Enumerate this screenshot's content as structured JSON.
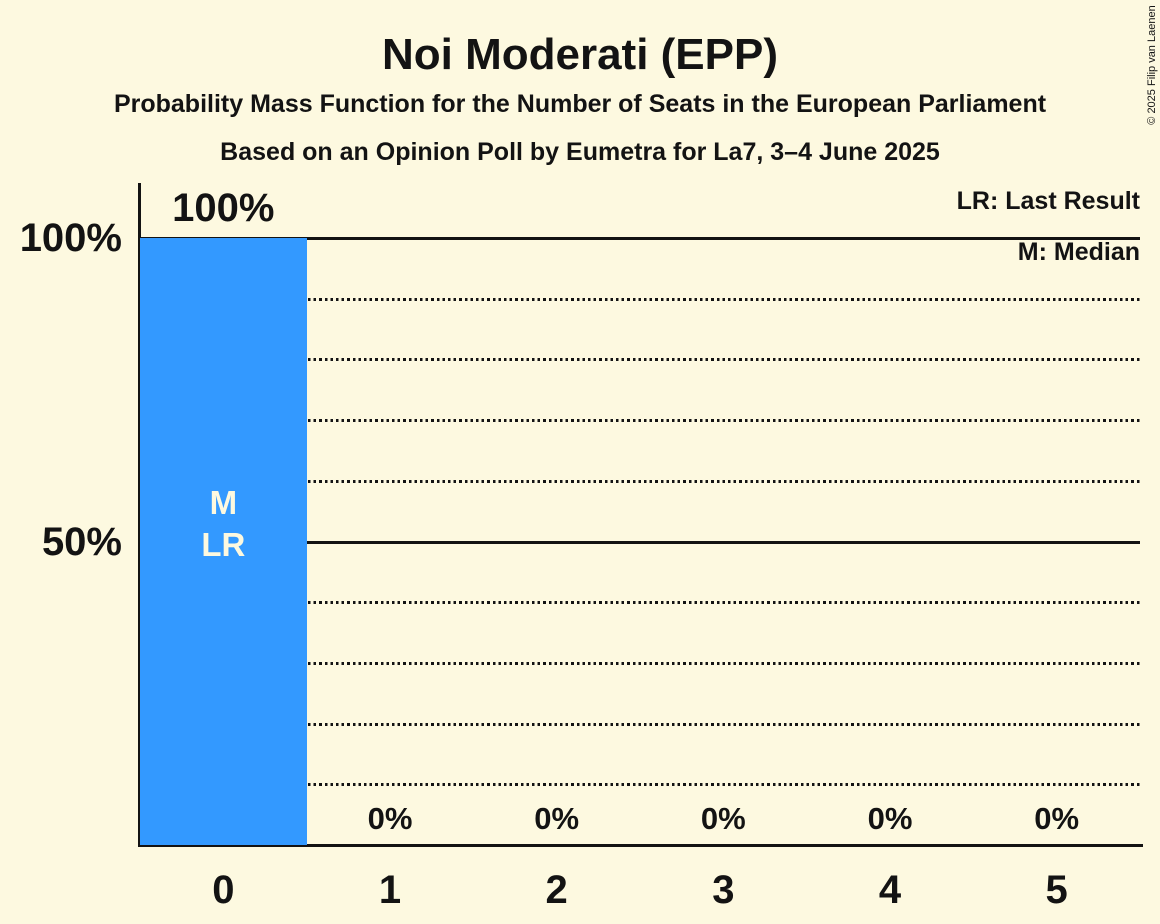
{
  "header": {
    "title": "Noi Moderati (EPP)",
    "subtitle1": "Probability Mass Function for the Number of Seats in the European Parliament",
    "subtitle2": "Based on an Opinion Poll by Eumetra for La7, 3–4 June 2025",
    "copyright": "© 2025 Filip van Laenen"
  },
  "chart_data": {
    "type": "bar",
    "title": "Noi Moderati (EPP)",
    "subtitle": "Probability Mass Function for the Number of Seats in the European Parliament",
    "source_line": "Based on an Opinion Poll by Eumetra for La7, 3–4 June 2025",
    "xlabel": "",
    "ylabel": "",
    "categories": [
      "0",
      "1",
      "2",
      "3",
      "4",
      "5"
    ],
    "values": [
      100,
      0,
      0,
      0,
      0,
      0
    ],
    "value_labels": [
      "100%",
      "0%",
      "0%",
      "0%",
      "0%",
      "0%"
    ],
    "ylim": [
      0,
      100
    ],
    "yticks": [
      {
        "label": "100%",
        "value": 100
      },
      {
        "label": "50%",
        "value": 50
      }
    ],
    "gridlines": {
      "dotted_pct": [
        10,
        20,
        30,
        40,
        60,
        70,
        80,
        90
      ],
      "solid_pct": [
        50,
        100
      ]
    },
    "legend": [
      "LR: Last Result",
      "M: Median"
    ],
    "legend_position": "top-right",
    "annotations": [
      {
        "column": 0,
        "lines": [
          "M",
          "LR"
        ],
        "meaning": "Median and Last Result at 0 seats"
      }
    ],
    "colors": {
      "bar": "#3399FF",
      "background": "#FDF9E0",
      "text": "#131313",
      "bar_label": "#FDF9E0"
    }
  }
}
